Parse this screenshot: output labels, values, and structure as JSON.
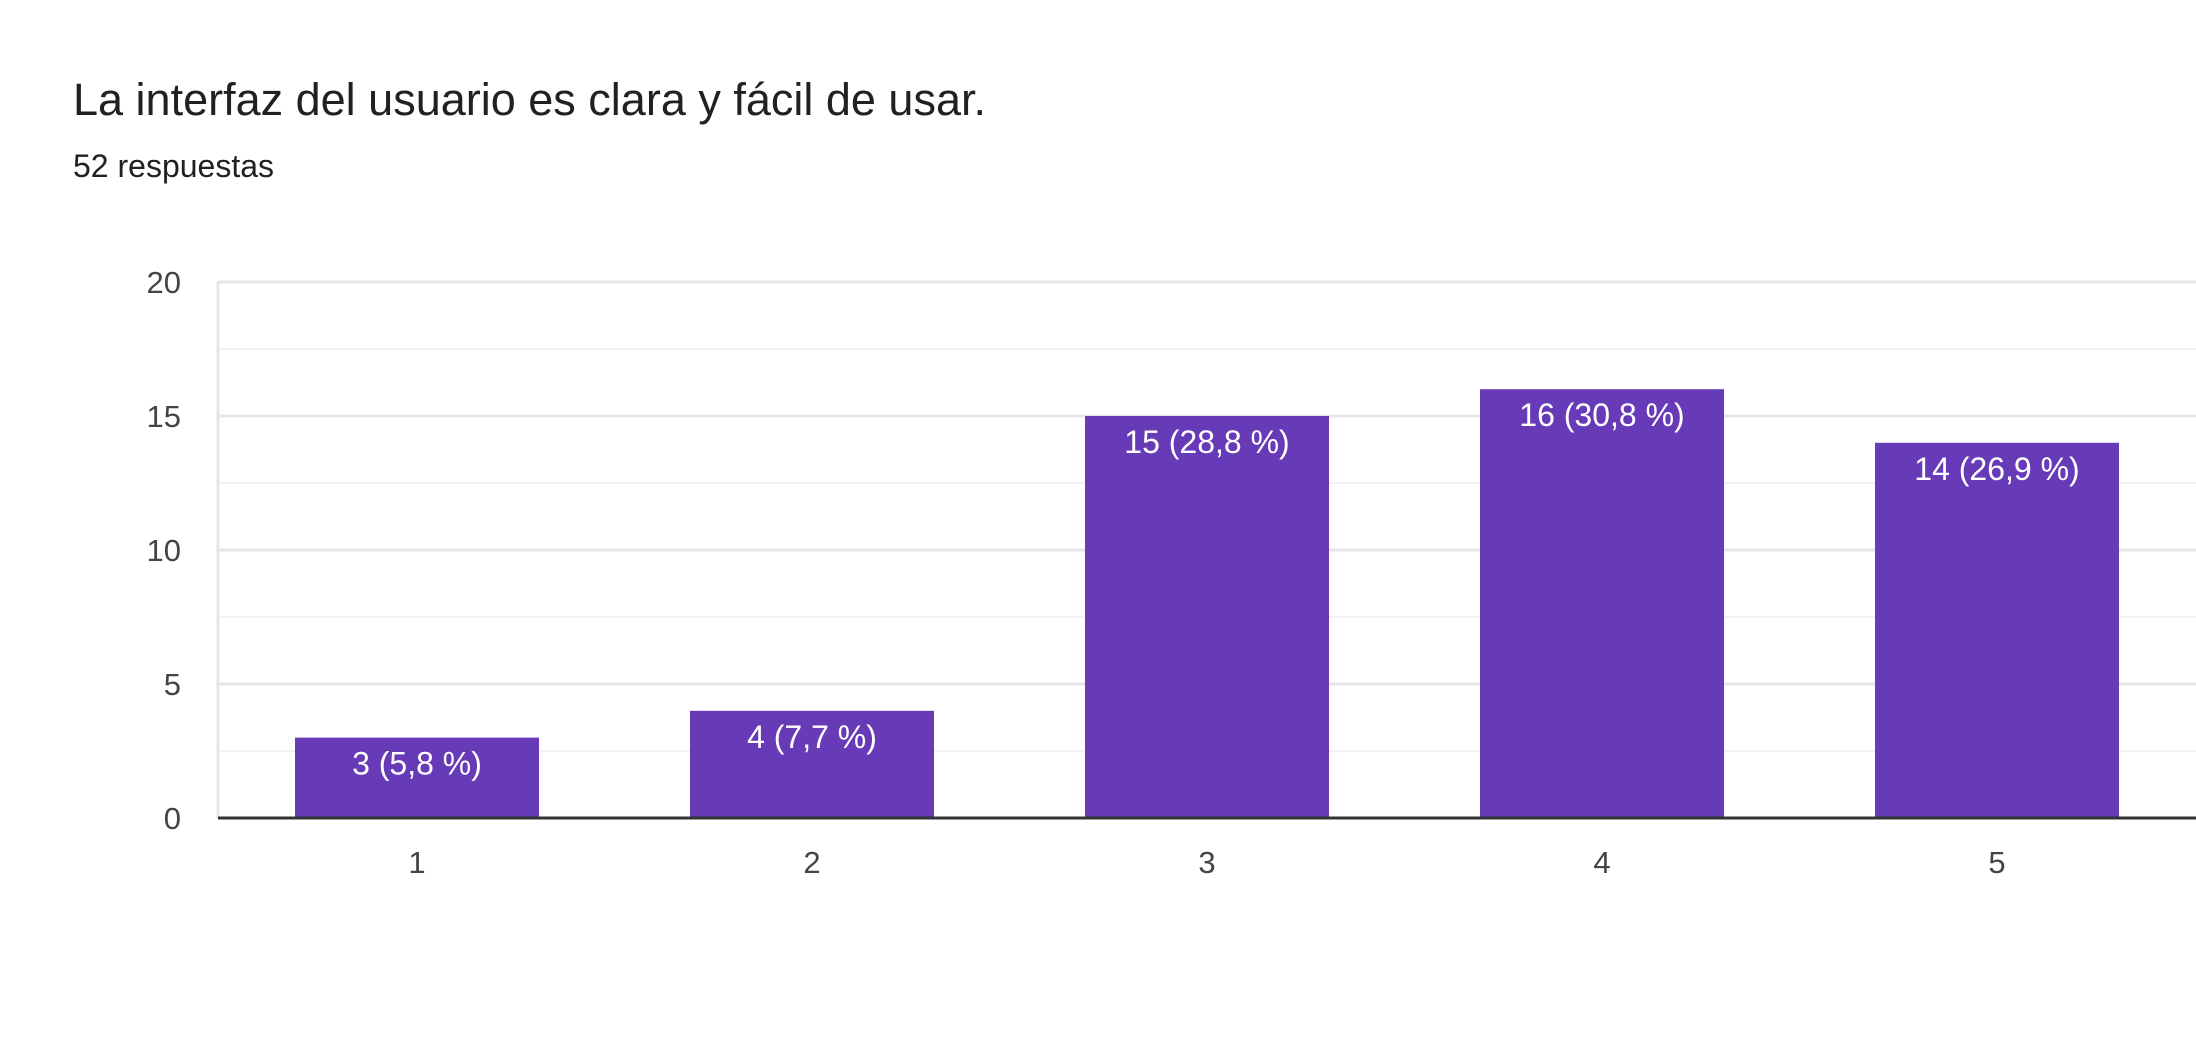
{
  "title": "La interfaz del usuario es clara y fácil de usar.",
  "subtitle": "52 respuestas",
  "colors": {
    "bar": "#673ab7",
    "grid_major": "#e6e6e6",
    "grid_minor": "#f2f2f2",
    "axis": "#333333"
  },
  "chart_data": {
    "type": "bar",
    "categories": [
      "1",
      "2",
      "3",
      "4",
      "5"
    ],
    "values": [
      3,
      4,
      15,
      16,
      14
    ],
    "data_labels": [
      "3 (5,8 %)",
      "4 (7,7 %)",
      "15 (28,8 %)",
      "16 (30,8 %)",
      "14 (26,9 %)"
    ],
    "yticks": [
      "0",
      "5",
      "10",
      "15",
      "20"
    ],
    "ylim": [
      0,
      20
    ],
    "grid": true,
    "legend": "none"
  }
}
